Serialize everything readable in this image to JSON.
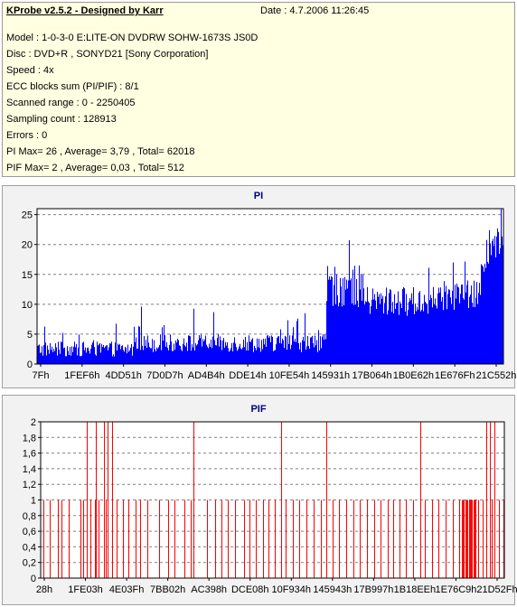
{
  "header": {
    "title": "KProbe v2.5.2 - Designed by Karr",
    "date": "Date : 4.7.2006 11:26:45"
  },
  "info_lines": [
    "Model : 1-0-3-0 E:LITE-ON DVDRW SOHW-1673S JS0D",
    "Disc : DVD+R , SONYD21 [Sony Corporation]",
    "Speed : 4x",
    "ECC blocks sum (PI/PIF) : 8/1",
    "Scanned range : 0 - 2250405",
    "Sampling count : 128913",
    "Errors : 0",
    "PI Max= 26 , Average= 3,79 , Total= 62018",
    "PIF Max= 2 , Average= 0,03 , Total= 512"
  ],
  "colors": {
    "pi": "#0000ff",
    "pif": "#ff0000",
    "grid": "#808080",
    "plot_bg": "#ffffff",
    "panel_bg": "#f2f2f2",
    "info_bg": "#ffffe1"
  },
  "chart_data": [
    {
      "type": "bar",
      "title": "PI",
      "xlabel": "",
      "ylabel": "",
      "ylim": [
        0,
        26
      ],
      "yticks": [
        "0",
        "5",
        "10",
        "15",
        "20",
        "25"
      ],
      "ytick_values": [
        0,
        5,
        10,
        15,
        20,
        25
      ],
      "xticks": [
        "7Fh",
        "1FEF6h",
        "4DD51h",
        "7D0D7h",
        "AD4B4h",
        "DDE14h",
        "10FE54h",
        "145931h",
        "17B064h",
        "1B0E62h",
        "1E676Fh",
        "21C552h"
      ],
      "grid": "horizontal-dashed",
      "segments": [
        {
          "from": 0.0,
          "to": 0.21,
          "base": 2.5,
          "spread": 2.5,
          "spike_max": 7
        },
        {
          "from": 0.21,
          "to": 0.62,
          "base": 3.5,
          "spread": 3.0,
          "spike_max": 10
        },
        {
          "from": 0.62,
          "to": 0.7,
          "base": 13.0,
          "spread": 7.0,
          "spike_max": 24
        },
        {
          "from": 0.7,
          "to": 0.86,
          "base": 10.5,
          "spread": 5.0,
          "spike_max": 17
        },
        {
          "from": 0.86,
          "to": 0.95,
          "base": 11.5,
          "spread": 5.0,
          "spike_max": 19
        },
        {
          "from": 0.95,
          "to": 1.0,
          "base": 17.0,
          "spread": 6.0,
          "spike_max": 26
        }
      ],
      "max": 26,
      "average": 3.79
    },
    {
      "type": "bar",
      "title": "PIF",
      "xlabel": "",
      "ylabel": "",
      "ylim": [
        0,
        2
      ],
      "yticks": [
        "0",
        "0,2",
        "0,4",
        "0,6",
        "0,8",
        "1",
        "1,2",
        "1,4",
        "1,6",
        "1,8",
        "2"
      ],
      "ytick_values": [
        0,
        0.2,
        0.4,
        0.6,
        0.8,
        1,
        1.2,
        1.4,
        1.6,
        1.8,
        2
      ],
      "xticks": [
        "28h",
        "1FE03h",
        "4E03Fh",
        "7BB02h",
        "AC398h",
        "DCE08h",
        "10F934h",
        "145943h",
        "17B997h",
        "1B18EEh",
        "1E76C9h",
        "21D52Fh"
      ],
      "grid": "horizontal-dashed",
      "spikes_2": [
        0.1,
        0.12,
        0.137,
        0.145,
        0.155,
        0.33,
        0.52,
        0.618,
        0.82,
        0.962,
        0.97,
        0.98
      ],
      "spikes_1": [
        0.005,
        0.02,
        0.038,
        0.045,
        0.06,
        0.085,
        0.092,
        0.107,
        0.117,
        0.125,
        0.14,
        0.165,
        0.178,
        0.19,
        0.205,
        0.215,
        0.23,
        0.256,
        0.275,
        0.29,
        0.31,
        0.325,
        0.33,
        0.36,
        0.376,
        0.39,
        0.405,
        0.42,
        0.44,
        0.452,
        0.465,
        0.48,
        0.492,
        0.505,
        0.52,
        0.53,
        0.545,
        0.558,
        0.575,
        0.59,
        0.605,
        0.63,
        0.645,
        0.66,
        0.675,
        0.69,
        0.705,
        0.72,
        0.735,
        0.75,
        0.762,
        0.775,
        0.79,
        0.805,
        0.83,
        0.845,
        0.86,
        0.875,
        0.89,
        0.905,
        0.915,
        0.92,
        0.925,
        0.93,
        0.935,
        0.945,
        0.955,
        0.975,
        0.99,
        1.0
      ],
      "max": 2,
      "average": 0.03
    }
  ]
}
